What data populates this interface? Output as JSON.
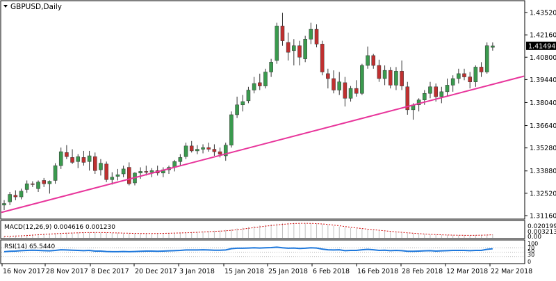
{
  "window": {
    "title": "GBPUSD,Daily",
    "menu_icon": "triangle-down-icon"
  },
  "price_axis": {
    "min": 1.3116,
    "max": 1.4352,
    "ticks": [
      "1.43520",
      "1.42160",
      "1.40800",
      "1.39440",
      "1.38040",
      "1.36640",
      "1.35280",
      "1.33880",
      "1.32520",
      "1.31160"
    ],
    "current_price_label": "1.41494",
    "current_price": 1.41494
  },
  "macd": {
    "label": "MACD(12,26,9) 0.004616 0.001230",
    "scale_labels": [
      "0.020199",
      "0.003213",
      "0.00"
    ],
    "colors": {
      "histogram": "#c0c0c0",
      "signal": "#cc0000"
    }
  },
  "rsi": {
    "label": "RSI(14) 65.5440",
    "scale_labels": [
      "100",
      "70",
      "50",
      "30",
      "0"
    ],
    "color": "#1e78dc"
  },
  "trendline": {
    "color": "#e8359b"
  },
  "colors": {
    "bull": "#3a9a4e",
    "bear": "#c03030",
    "axis": "#000000",
    "grid_dotted": "#b0b0b0"
  },
  "date_axis": [
    "16 Nov 2017",
    "28 Nov 2017",
    "8 Dec 2017",
    "20 Dec 2017",
    "3 Jan 2018",
    "15 Jan 2018",
    "25 Jan 2018",
    "6 Feb 2018",
    "16 Feb 2018",
    "28 Feb 2018",
    "12 Mar 2018",
    "22 Mar 2018"
  ],
  "chart_data": {
    "type": "candlestick",
    "symbol": "GBPUSD",
    "timeframe": "Daily",
    "ylim": [
      1.3116,
      1.4352
    ],
    "x_labels": [
      "16 Nov 2017",
      "28 Nov 2017",
      "8 Dec 2017",
      "20 Dec 2017",
      "3 Jan 2018",
      "15 Jan 2018",
      "25 Jan 2018",
      "6 Feb 2018",
      "16 Feb 2018",
      "28 Feb 2018",
      "12 Mar 2018",
      "22 Mar 2018"
    ],
    "candles": [
      [
        1.318,
        1.321,
        1.315,
        1.319
      ],
      [
        1.32,
        1.326,
        1.318,
        1.3245
      ],
      [
        1.324,
        1.327,
        1.321,
        1.323
      ],
      [
        1.323,
        1.328,
        1.3215,
        1.3265
      ],
      [
        1.3275,
        1.333,
        1.3255,
        1.331
      ],
      [
        1.331,
        1.3325,
        1.329,
        1.3305
      ],
      [
        1.328,
        1.333,
        1.326,
        1.332
      ],
      [
        1.333,
        1.3345,
        1.329,
        1.331
      ],
      [
        1.331,
        1.333,
        1.325,
        1.3325
      ],
      [
        1.333,
        1.3435,
        1.331,
        1.342
      ],
      [
        1.342,
        1.353,
        1.34,
        1.3505
      ],
      [
        1.35,
        1.3545,
        1.346,
        1.3475
      ],
      [
        1.347,
        1.352,
        1.343,
        1.344
      ],
      [
        1.3445,
        1.349,
        1.3405,
        1.3475
      ],
      [
        1.347,
        1.351,
        1.342,
        1.344
      ],
      [
        1.3445,
        1.351,
        1.339,
        1.348
      ],
      [
        1.3475,
        1.35,
        1.337,
        1.339
      ],
      [
        1.3395,
        1.346,
        1.336,
        1.3435
      ],
      [
        1.343,
        1.3445,
        1.332,
        1.3335
      ],
      [
        1.3335,
        1.338,
        1.3305,
        1.335
      ],
      [
        1.3355,
        1.34,
        1.333,
        1.3365
      ],
      [
        1.337,
        1.342,
        1.335,
        1.34
      ],
      [
        1.341,
        1.344,
        1.33,
        1.331
      ],
      [
        1.3315,
        1.338,
        1.33,
        1.3375
      ],
      [
        1.3375,
        1.341,
        1.334,
        1.3385
      ],
      [
        1.3385,
        1.342,
        1.336,
        1.338
      ],
      [
        1.338,
        1.3405,
        1.335,
        1.339
      ],
      [
        1.339,
        1.342,
        1.336,
        1.3375
      ],
      [
        1.3375,
        1.341,
        1.335,
        1.3395
      ],
      [
        1.3395,
        1.342,
        1.337,
        1.341
      ],
      [
        1.341,
        1.3455,
        1.3385,
        1.3445
      ],
      [
        1.3445,
        1.349,
        1.342,
        1.347
      ],
      [
        1.3475,
        1.356,
        1.346,
        1.354
      ],
      [
        1.354,
        1.357,
        1.35,
        1.351
      ],
      [
        1.351,
        1.3545,
        1.349,
        1.352
      ],
      [
        1.352,
        1.355,
        1.3495,
        1.353
      ],
      [
        1.353,
        1.356,
        1.3505,
        1.352
      ],
      [
        1.352,
        1.355,
        1.348,
        1.3505
      ],
      [
        1.3505,
        1.353,
        1.347,
        1.349
      ],
      [
        1.348,
        1.356,
        1.345,
        1.3545
      ],
      [
        1.3545,
        1.375,
        1.353,
        1.373
      ],
      [
        1.373,
        1.384,
        1.371,
        1.379
      ],
      [
        1.379,
        1.385,
        1.375,
        1.381
      ],
      [
        1.3815,
        1.39,
        1.38,
        1.388
      ],
      [
        1.388,
        1.396,
        1.386,
        1.392
      ],
      [
        1.3925,
        1.398,
        1.388,
        1.3905
      ],
      [
        1.3905,
        1.401,
        1.389,
        1.399
      ],
      [
        1.399,
        1.407,
        1.396,
        1.405
      ],
      [
        1.406,
        1.429,
        1.404,
        1.427
      ],
      [
        1.427,
        1.435,
        1.415,
        1.418
      ],
      [
        1.417,
        1.423,
        1.406,
        1.411
      ],
      [
        1.412,
        1.419,
        1.403,
        1.415
      ],
      [
        1.415,
        1.418,
        1.403,
        1.408
      ],
      [
        1.407,
        1.421,
        1.405,
        1.419
      ],
      [
        1.419,
        1.429,
        1.416,
        1.425
      ],
      [
        1.425,
        1.428,
        1.414,
        1.416
      ],
      [
        1.416,
        1.418,
        1.397,
        1.399
      ],
      [
        1.398,
        1.401,
        1.389,
        1.395
      ],
      [
        1.395,
        1.4,
        1.386,
        1.388
      ],
      [
        1.388,
        1.399,
        1.385,
        1.393
      ],
      [
        1.3925,
        1.396,
        1.378,
        1.383
      ],
      [
        1.383,
        1.3905,
        1.381,
        1.389
      ],
      [
        1.389,
        1.394,
        1.384,
        1.386
      ],
      [
        1.386,
        1.404,
        1.385,
        1.403
      ],
      [
        1.403,
        1.4145,
        1.401,
        1.409
      ],
      [
        1.409,
        1.41,
        1.401,
        1.403
      ],
      [
        1.403,
        1.4065,
        1.393,
        1.395
      ],
      [
        1.395,
        1.403,
        1.391,
        1.4
      ],
      [
        1.4,
        1.402,
        1.389,
        1.391
      ],
      [
        1.391,
        1.402,
        1.388,
        1.3995
      ],
      [
        1.3995,
        1.406,
        1.388,
        1.3905
      ],
      [
        1.39,
        1.393,
        1.373,
        1.376
      ],
      [
        1.376,
        1.38,
        1.37,
        1.379
      ],
      [
        1.379,
        1.383,
        1.375,
        1.382
      ],
      [
        1.382,
        1.388,
        1.379,
        1.386
      ],
      [
        1.386,
        1.393,
        1.383,
        1.39
      ],
      [
        1.39,
        1.392,
        1.381,
        1.384
      ],
      [
        1.384,
        1.39,
        1.38,
        1.387
      ],
      [
        1.387,
        1.395,
        1.384,
        1.391
      ],
      [
        1.391,
        1.397,
        1.387,
        1.395
      ],
      [
        1.395,
        1.401,
        1.392,
        1.398
      ],
      [
        1.398,
        1.401,
        1.394,
        1.396
      ],
      [
        1.396,
        1.399,
        1.389,
        1.393
      ],
      [
        1.393,
        1.403,
        1.39,
        1.402
      ],
      [
        1.402,
        1.405,
        1.396,
        1.399
      ],
      [
        1.399,
        1.417,
        1.398,
        1.415
      ],
      [
        1.414,
        1.417,
        1.412,
        1.4149
      ]
    ],
    "trendline": {
      "start": [
        0,
        1.314
      ],
      "end": [
        86,
        1.3915
      ]
    },
    "macd_histogram": [
      0.002,
      0.0025,
      0.003,
      0.0035,
      0.004,
      0.0045,
      0.005,
      0.0055,
      0.006,
      0.0062,
      0.0065,
      0.0068,
      0.007,
      0.0072,
      0.0073,
      0.0074,
      0.0073,
      0.007,
      0.0068,
      0.0066,
      0.0064,
      0.0062,
      0.006,
      0.0058,
      0.0058,
      0.0059,
      0.006,
      0.0062,
      0.0064,
      0.0066,
      0.0068,
      0.007,
      0.0074,
      0.0078,
      0.0082,
      0.0086,
      0.009,
      0.0094,
      0.0098,
      0.0105,
      0.0115,
      0.0125,
      0.0135,
      0.0145,
      0.0155,
      0.0165,
      0.0172,
      0.018,
      0.0188,
      0.0195,
      0.0198,
      0.0199,
      0.0198,
      0.0196,
      0.0193,
      0.0188,
      0.018,
      0.017,
      0.016,
      0.015,
      0.014,
      0.013,
      0.0122,
      0.0115,
      0.0108,
      0.01,
      0.0092,
      0.0085,
      0.0078,
      0.0072,
      0.0066,
      0.006,
      0.0055,
      0.005,
      0.0046,
      0.0043,
      0.004,
      0.0038,
      0.0036,
      0.0035,
      0.0034,
      0.0034,
      0.0035,
      0.0037,
      0.004,
      0.0044,
      0.0046
    ],
    "macd_ylim": [
      0,
      0.020199
    ],
    "rsi_ylim": [
      0,
      100
    ],
    "rsi_values": [
      52,
      54,
      55,
      57,
      58,
      59,
      58,
      57,
      56,
      58,
      61,
      60,
      59,
      58,
      57,
      58,
      55,
      55,
      53,
      52,
      52,
      53,
      52,
      53,
      54,
      55,
      55,
      54,
      55,
      56,
      57,
      58,
      60,
      60,
      60,
      61,
      60,
      59,
      59,
      60,
      66,
      68,
      68,
      69,
      70,
      69,
      70,
      71,
      73,
      70,
      68,
      69,
      67,
      68,
      70,
      69,
      64,
      61,
      60,
      61,
      57,
      58,
      58,
      61,
      63,
      61,
      58,
      59,
      57,
      58,
      57,
      54,
      54,
      55,
      56,
      57,
      55,
      56,
      57,
      58,
      58,
      58,
      57,
      58,
      58,
      63,
      65.544
    ]
  }
}
